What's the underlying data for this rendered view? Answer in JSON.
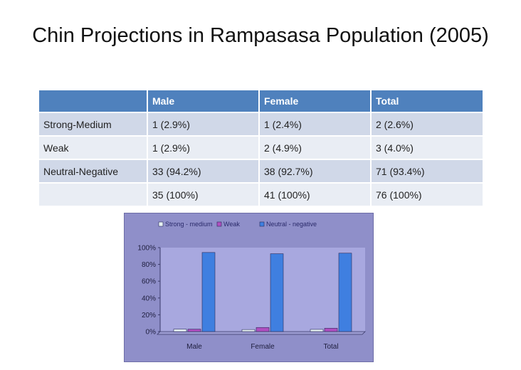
{
  "title": "Chin Projections in Rampasasa Population (2005)",
  "table": {
    "headers": [
      "",
      "Male",
      "Female",
      "Total"
    ],
    "rows": [
      [
        "Strong-Medium",
        "1 (2.9%)",
        "1 (2.4%)",
        "2 (2.6%)"
      ],
      [
        "Weak",
        "1 (2.9%)",
        "2 (4.9%)",
        "3 (4.0%)"
      ],
      [
        "Neutral-Negative",
        "33 (94.2%)",
        "38 (92.7%)",
        "71 (93.4%)"
      ],
      [
        "",
        "35 (100%)",
        "41 (100%)",
        "76 (100%)"
      ]
    ]
  },
  "colors": {
    "header": "#4f81bd",
    "row_dark": "#d0d8e8",
    "row_light": "#e9edf4",
    "chart_bg": "#8f8fc9",
    "plot_bg": "#a8a8df"
  },
  "chart_data": {
    "type": "bar",
    "categories": [
      "Male",
      "Female",
      "Total"
    ],
    "series": [
      {
        "name": "Strong - medium",
        "values": [
          2.9,
          2.4,
          2.6
        ],
        "color": "#e6f2f2"
      },
      {
        "name": "Weak",
        "values": [
          2.9,
          4.9,
          4.0
        ],
        "color": "#b04fc0"
      },
      {
        "name": "Neutral - negative",
        "values": [
          94.2,
          92.7,
          93.4
        ],
        "color": "#3f7fe0"
      }
    ],
    "y_ticks": [
      "0%",
      "20%",
      "40%",
      "60%",
      "80%",
      "100%"
    ],
    "ylim": [
      0,
      100
    ],
    "legend_position": "top"
  }
}
